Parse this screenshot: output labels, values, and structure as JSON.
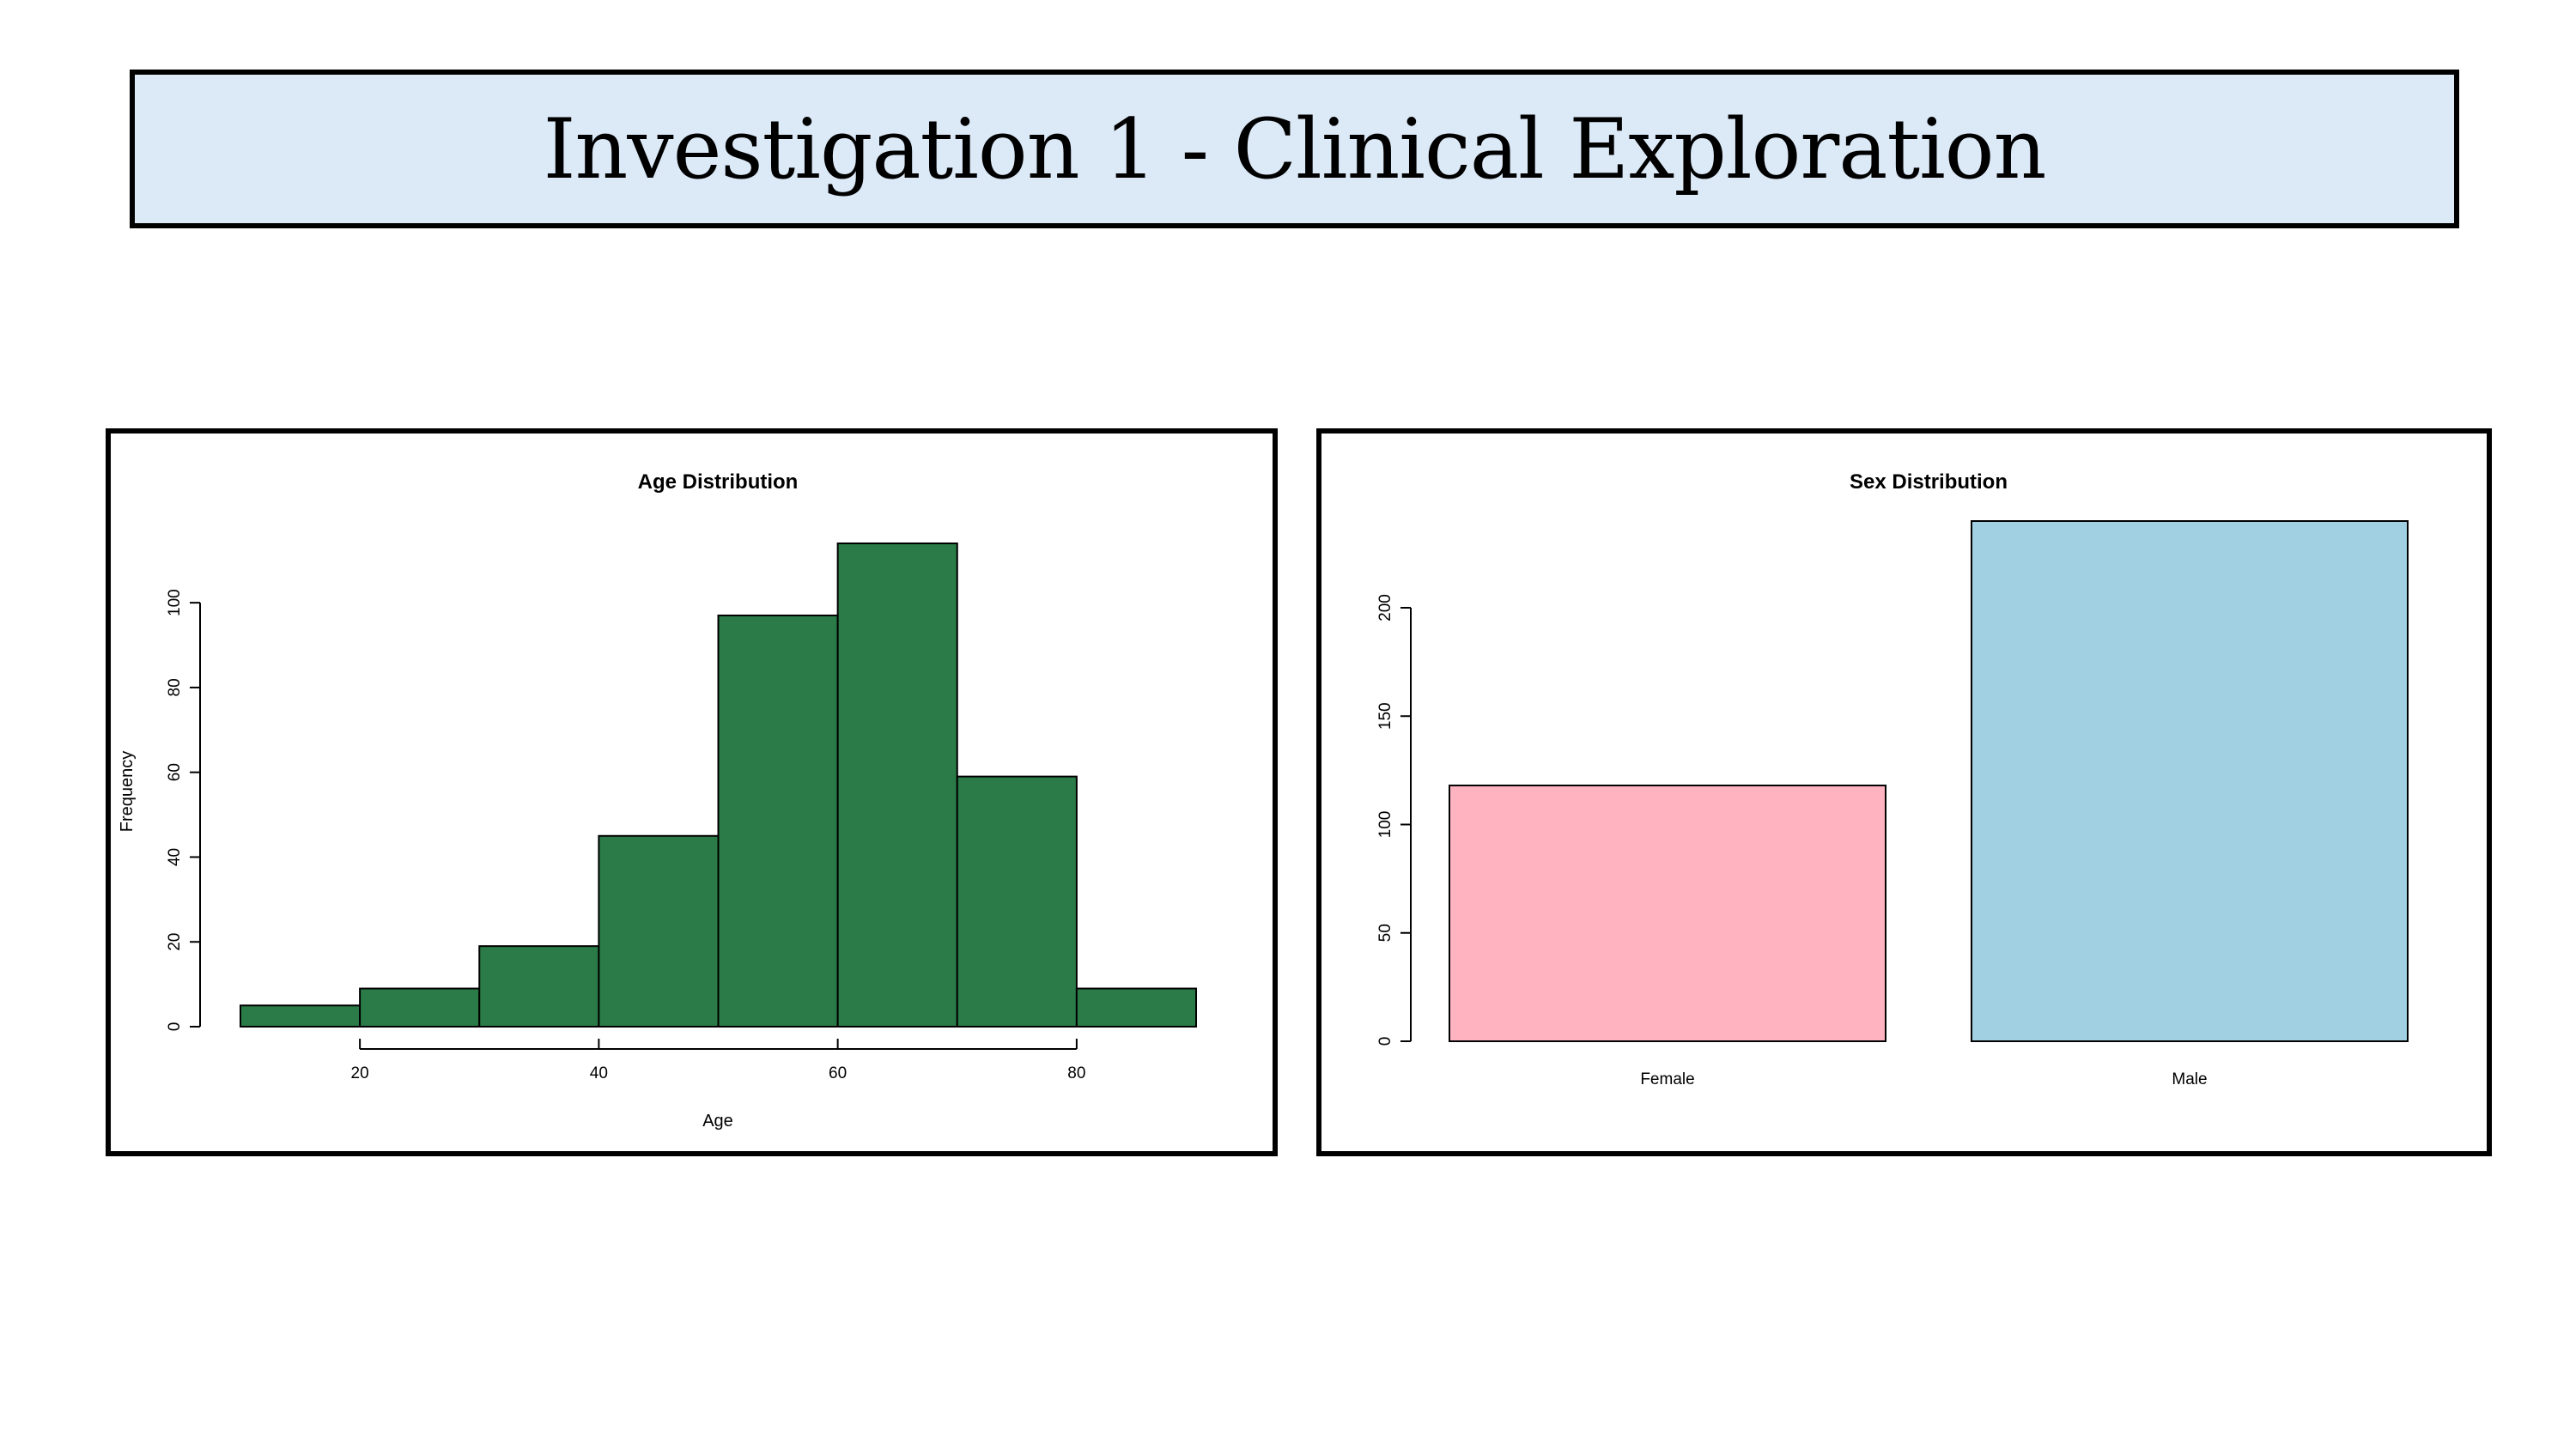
{
  "page": {
    "title": "Investigation 1 - Clinical Exploration"
  },
  "chart_data": [
    {
      "type": "bar",
      "subtype": "histogram",
      "title": "Age Distribution",
      "xlabel": "Age",
      "ylabel": "Frequency",
      "bins": [
        [
          10,
          20
        ],
        [
          20,
          30
        ],
        [
          30,
          40
        ],
        [
          40,
          50
        ],
        [
          50,
          60
        ],
        [
          60,
          70
        ],
        [
          70,
          80
        ],
        [
          80,
          90
        ]
      ],
      "values": [
        5,
        9,
        19,
        45,
        97,
        114,
        59,
        9
      ],
      "xlim": [
        10,
        90
      ],
      "ylim": [
        0,
        114
      ],
      "xticks": [
        20,
        40,
        60,
        80
      ],
      "yticks": [
        0,
        20,
        40,
        60,
        80,
        100
      ],
      "bar_color": "#2a7b47",
      "grid": false
    },
    {
      "type": "bar",
      "title": "Sex Distribution",
      "xlabel": "",
      "ylabel": "",
      "categories": [
        "Female",
        "Male"
      ],
      "values": [
        118,
        240
      ],
      "colors": [
        "#ffb3c1",
        "#a0d0e2"
      ],
      "ylim": [
        0,
        240
      ],
      "yticks": [
        0,
        50,
        100,
        150,
        200
      ],
      "grid": false
    }
  ]
}
